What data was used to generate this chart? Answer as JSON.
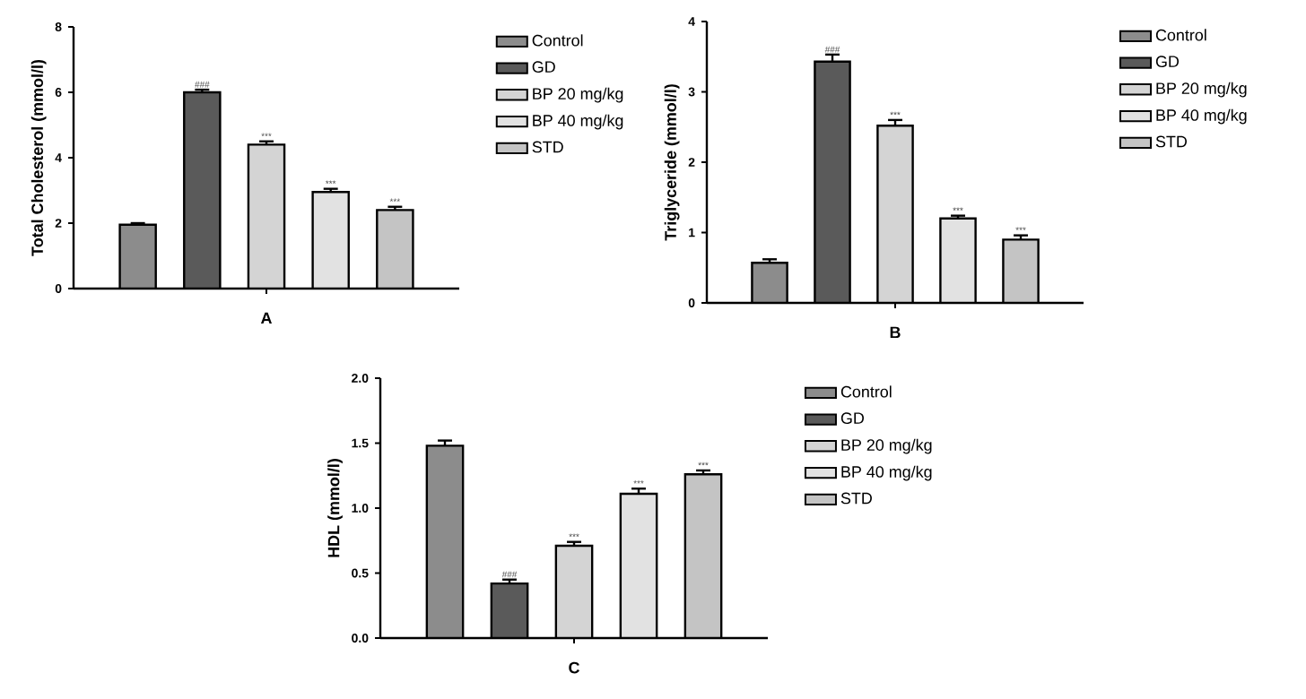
{
  "chart_data": [
    {
      "type": "bar",
      "xlabel": "A",
      "ylabel": "Total Cholesterol (mmol/l)",
      "categories": [
        null
      ],
      "ylim": [
        0,
        8
      ],
      "yticks": [
        0,
        2,
        4,
        6,
        8
      ],
      "legend": "right",
      "grid": false,
      "series": [
        {
          "name": "Control",
          "color": "#8c8c8c",
          "values": [
            1.95
          ],
          "errors": [
            0.05
          ],
          "value_labels": [
            null
          ]
        },
        {
          "name": "GD",
          "color": "#5a5a5a",
          "values": [
            6.0
          ],
          "errors": [
            0.08
          ],
          "value_labels": [
            "###"
          ]
        },
        {
          "name": "BP 20 mg/kg",
          "color": "#d4d4d4",
          "values": [
            4.4
          ],
          "errors": [
            0.1
          ],
          "value_labels": [
            "***"
          ]
        },
        {
          "name": "BP 40 mg/kg",
          "color": "#e2e2e2",
          "values": [
            2.95
          ],
          "errors": [
            0.1
          ],
          "value_labels": [
            "***"
          ]
        },
        {
          "name": "STD",
          "color": "#c4c4c4",
          "values": [
            2.4
          ],
          "errors": [
            0.1
          ],
          "value_labels": [
            "***"
          ]
        }
      ]
    },
    {
      "type": "bar",
      "xlabel": "B",
      "ylabel": "Triglyceride (mmol/l)",
      "categories": [
        null
      ],
      "ylim": [
        0,
        4
      ],
      "yticks": [
        0,
        1,
        2,
        3,
        4
      ],
      "legend": "right",
      "grid": false,
      "series": [
        {
          "name": "Control",
          "color": "#8c8c8c",
          "values": [
            0.57
          ],
          "errors": [
            0.05
          ],
          "value_labels": [
            null
          ]
        },
        {
          "name": "GD",
          "color": "#5a5a5a",
          "values": [
            3.43
          ],
          "errors": [
            0.1
          ],
          "value_labels": [
            "###"
          ]
        },
        {
          "name": "BP 20 mg/kg",
          "color": "#d4d4d4",
          "values": [
            2.52
          ],
          "errors": [
            0.08
          ],
          "value_labels": [
            "***"
          ]
        },
        {
          "name": "BP 40 mg/kg",
          "color": "#e2e2e2",
          "values": [
            1.2
          ],
          "errors": [
            0.04
          ],
          "value_labels": [
            "***"
          ]
        },
        {
          "name": "STD",
          "color": "#c4c4c4",
          "values": [
            0.9
          ],
          "errors": [
            0.06
          ],
          "value_labels": [
            "***"
          ]
        }
      ]
    },
    {
      "type": "bar",
      "xlabel": "C",
      "ylabel": "HDL (mmol/l)",
      "categories": [
        null
      ],
      "ylim": [
        0,
        2
      ],
      "yticks": [
        {
          "value": 0,
          "label": "0.0"
        },
        {
          "value": 0.5,
          "label": "0.5"
        },
        {
          "value": 1,
          "label": "1.0"
        },
        {
          "value": 1.5,
          "label": "1.5"
        },
        {
          "value": 2,
          "label": "2.0"
        }
      ],
      "legend": "right",
      "grid": false,
      "series": [
        {
          "name": "Control",
          "color": "#8c8c8c",
          "values": [
            1.48
          ],
          "errors": [
            0.04
          ],
          "value_labels": [
            null
          ]
        },
        {
          "name": "GD",
          "color": "#5a5a5a",
          "values": [
            0.42
          ],
          "errors": [
            0.03
          ],
          "value_labels": [
            "###"
          ]
        },
        {
          "name": "BP 20 mg/kg",
          "color": "#d4d4d4",
          "values": [
            0.71
          ],
          "errors": [
            0.03
          ],
          "value_labels": [
            "***"
          ]
        },
        {
          "name": "BP 40 mg/kg",
          "color": "#e2e2e2",
          "values": [
            1.11
          ],
          "errors": [
            0.04
          ],
          "value_labels": [
            "***"
          ]
        },
        {
          "name": "STD",
          "color": "#c4c4c4",
          "values": [
            1.26
          ],
          "errors": [
            0.03
          ],
          "value_labels": [
            "***"
          ]
        }
      ]
    }
  ]
}
